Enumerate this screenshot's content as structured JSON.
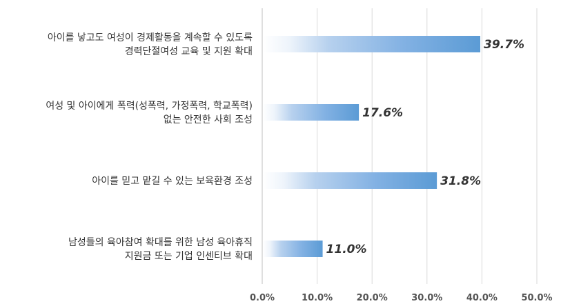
{
  "chart_data": {
    "type": "bar",
    "orientation": "horizontal",
    "categories": [
      "아이를 낳고도 여성이 경제활동을 계속할 수 있도록\n경력단절여성 교육 및 지원 확대",
      "여성 및 아이에게 폭력(성폭력, 가정폭력, 학교폭력)\n없는 안전한 사회 조성",
      "아이를 믿고 맡길 수 있는 보육환경 조성",
      "남성들의 육아참여 확대를 위한 남성 육아휴직\n지원금 또는 기업 인센티브 확대"
    ],
    "values": [
      39.7,
      17.6,
      31.8,
      11.0
    ],
    "value_labels": [
      "39.7%",
      "17.6%",
      "31.8%",
      "11.0%"
    ],
    "x_ticks": [
      "0.0%",
      "10.0%",
      "20.0%",
      "30.0%",
      "40.0%",
      "50.0%"
    ],
    "xlim": [
      0,
      50
    ],
    "grid": true,
    "bar_color": "#5b9bd5",
    "title": "",
    "xlabel": "",
    "ylabel": ""
  }
}
